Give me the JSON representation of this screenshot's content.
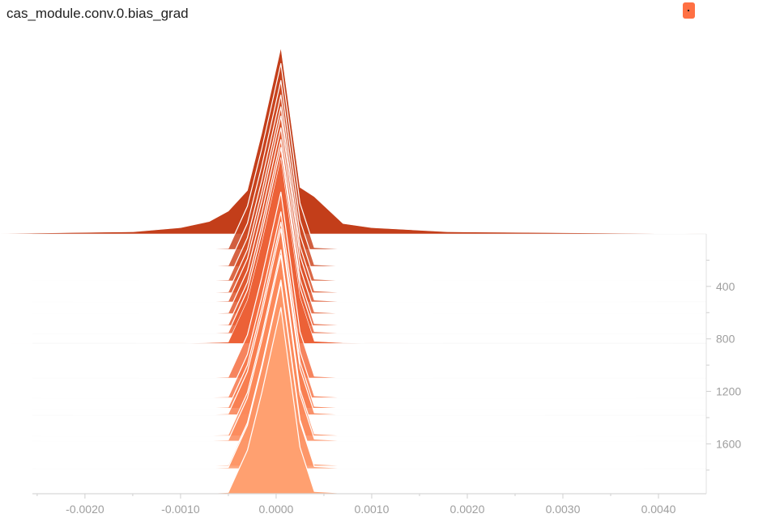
{
  "title": "cas_module.conv.0.bias_grad",
  "chart_data": {
    "type": "histogram-offset",
    "title": "cas_module.conv.0.bias_grad",
    "x_ticks": [
      -0.002,
      -0.001,
      0.0,
      0.001,
      0.002,
      0.003,
      0.004
    ],
    "x_tick_labels": [
      "-0.0020",
      "-0.0010",
      "0.0000",
      "0.0010",
      "0.0020",
      "0.0030",
      "0.0040"
    ],
    "xlim": [
      -0.00255,
      0.0045
    ],
    "y_ticks": [
      400,
      800,
      1200,
      1600
    ],
    "y_tick_labels": [
      "400",
      "800",
      "1200",
      "1600"
    ],
    "steplim": [
      0,
      1980
    ],
    "colors": {
      "newest": "#ffa070",
      "middle": "#f4683c",
      "oldest": "#c33e1a"
    },
    "highlight_steps": [
      0,
      835
    ],
    "steps": [
      0,
      120,
      250,
      360,
      450,
      520,
      610,
      700,
      760,
      835,
      1100,
      1250,
      1330,
      1380,
      1540,
      1580,
      1770,
      1790,
      1980
    ],
    "distribution": {
      "x": [
        -0.0032,
        -0.0015,
        -0.001,
        -0.0007,
        -0.0005,
        -0.0003,
        -0.00015,
        5e-05,
        0.00025,
        0.0004,
        0.0007,
        0.001,
        0.0018,
        0.0045
      ],
      "peak_counts": [
        0,
        0.1,
        0.3,
        0.6,
        1.1,
        2.8,
        6.5,
        9.0,
        3.0,
        1.8,
        0.5,
        0.3,
        0.1,
        0
      ]
    }
  }
}
